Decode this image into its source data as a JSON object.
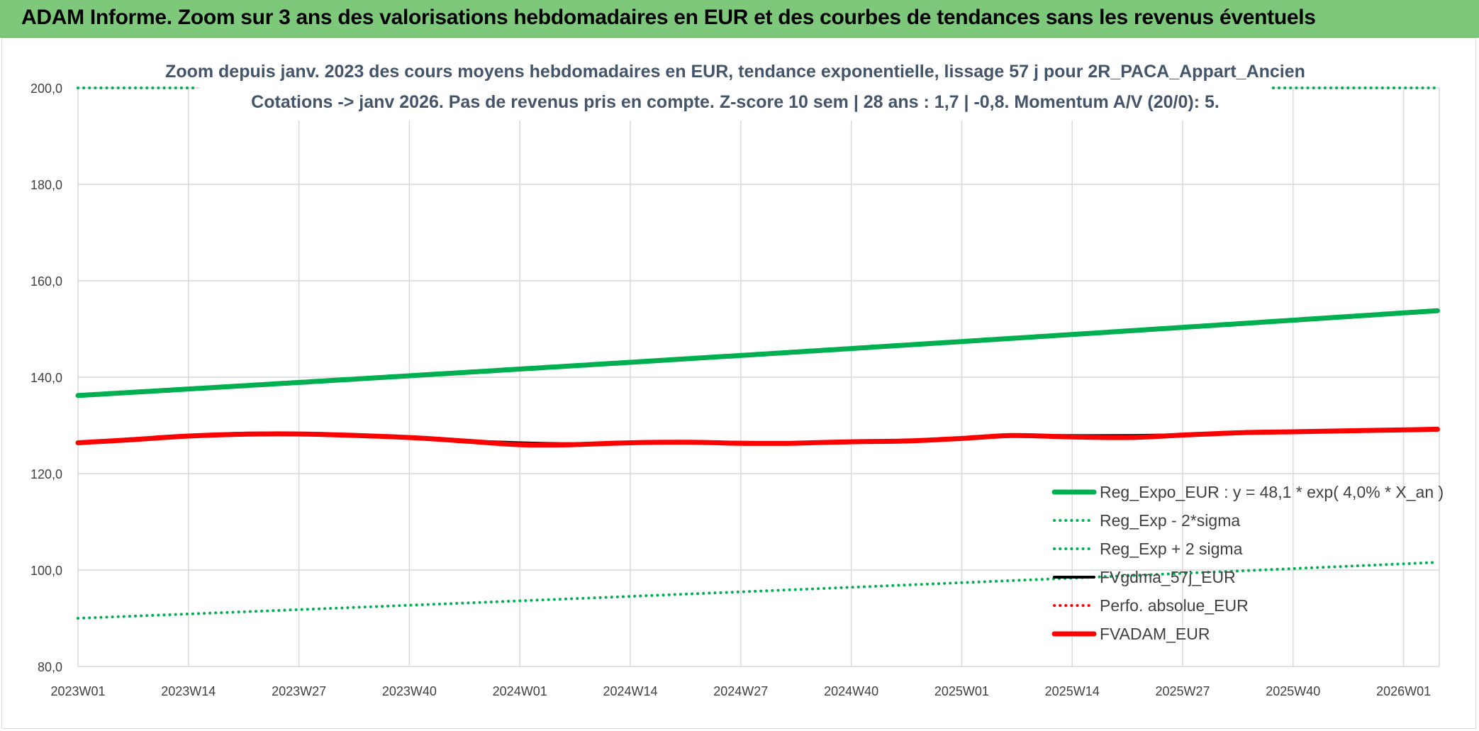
{
  "banner": {
    "title": "ADAM Informe. Zoom sur 3 ans des valorisations hebdomadaires en EUR et des courbes de tendances sans les revenus éventuels"
  },
  "colors": {
    "banner": "#7dc87a",
    "green": "#00b050",
    "red": "#ff0000",
    "black": "#000000",
    "title": "#44546a",
    "grid": "#d9d9d9"
  },
  "chart_data": {
    "type": "line",
    "title_lines": [
      "Zoom depuis janv. 2023 des cours moyens hebdomadaires en EUR, tendance exponentielle, lissage 57 j pour 2R_PACA_Appart_Ancien",
      "Cotations -> janv 2026. Pas de revenus pris en compte. Z-score 10 sem | 28 ans : 1,7 | -0,8. Momentum A/V (20/0): 5."
    ],
    "x_tick_labels": [
      "2023W01",
      "2023W14",
      "2023W27",
      "2023W40",
      "2024W01",
      "2024W14",
      "2024W27",
      "2024W40",
      "2025W01",
      "2025W14",
      "2025W27",
      "2025W40",
      "2026W01"
    ],
    "x_range_weeks": [
      0,
      160
    ],
    "y_tick_labels": [
      "80,0",
      "100,0",
      "120,0",
      "140,0",
      "160,0",
      "180,0",
      "200,0"
    ],
    "ylim": [
      80,
      200
    ],
    "grid": true,
    "legend_position": "bottom-right",
    "series": [
      {
        "name": "Reg_Expo_EUR : y = 48,1 * exp( 4,0% *  X_an )",
        "style": "solid-thick",
        "color": "#00b050",
        "x": [
          0,
          160
        ],
        "y": [
          136.2,
          153.8
        ],
        "growth": "exponential"
      },
      {
        "name": "Reg_Exp - 2*sigma",
        "style": "dotted",
        "color": "#00b050",
        "x": [
          0,
          160
        ],
        "y": [
          90.0,
          101.6
        ],
        "growth": "exponential"
      },
      {
        "name": "Reg_Exp + 2 sigma",
        "style": "dotted",
        "color": "#00b050",
        "x": [
          0,
          14,
          140,
          160
        ],
        "y": [
          200.0,
          200.0,
          200.0,
          200.0
        ],
        "gaps_over": [
          [
            14,
            140
          ]
        ]
      },
      {
        "name": "FVgdma_57j_EUR",
        "style": "solid",
        "color": "#000000",
        "x": [
          0,
          6,
          13,
          20,
          27,
          33,
          40,
          46,
          52,
          58,
          65,
          72,
          78,
          84,
          91,
          98,
          104,
          110,
          117,
          124,
          130,
          137,
          144,
          150,
          157,
          160
        ],
        "y": [
          126.4,
          127.2,
          127.9,
          128.4,
          128.3,
          128.0,
          127.5,
          126.8,
          126.4,
          126.2,
          126.3,
          126.6,
          126.5,
          126.4,
          126.4,
          126.9,
          127.4,
          127.9,
          127.9,
          127.9,
          128.1,
          128.5,
          128.7,
          128.9,
          129.1,
          129.2
        ]
      },
      {
        "name": "Perfo. absolue_EUR",
        "style": "dotted",
        "color": "#ff0000",
        "x": [],
        "y": []
      },
      {
        "name": "FVADAM_EUR",
        "style": "solid-thick",
        "color": "#ff0000",
        "x": [
          0,
          6,
          13,
          20,
          27,
          33,
          40,
          46,
          52,
          58,
          65,
          72,
          78,
          84,
          91,
          98,
          104,
          110,
          117,
          124,
          130,
          137,
          144,
          150,
          157,
          160
        ],
        "y": [
          126.4,
          127.0,
          127.8,
          128.2,
          128.2,
          127.9,
          127.4,
          126.7,
          126.0,
          126.0,
          126.4,
          126.5,
          126.3,
          126.3,
          126.6,
          126.8,
          127.3,
          127.9,
          127.6,
          127.5,
          128.0,
          128.5,
          128.7,
          128.9,
          129.1,
          129.2
        ]
      }
    ]
  }
}
